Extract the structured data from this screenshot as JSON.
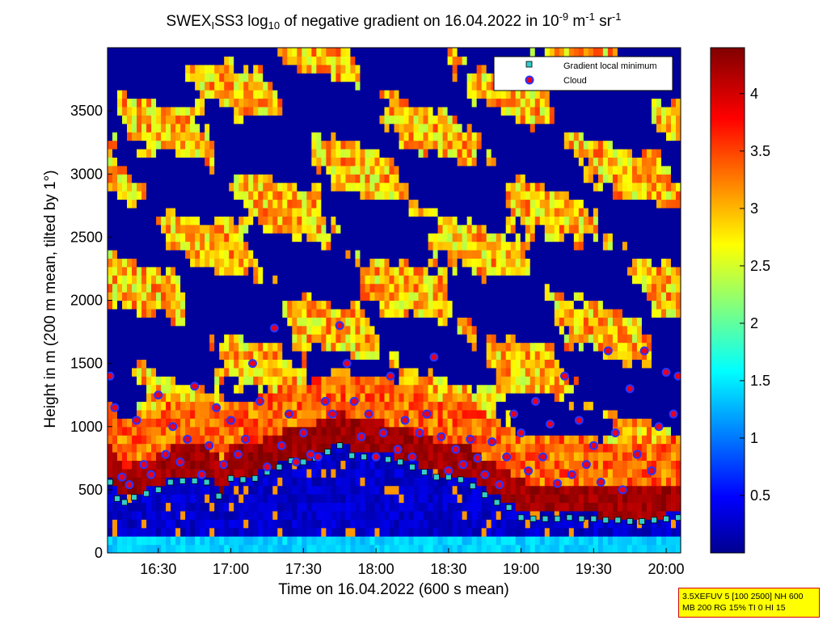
{
  "chart_data": {
    "type": "heatmap",
    "title": {
      "prefix": "SWEX",
      "prefix_sub": "I",
      "after_sub": "SS3 log",
      "log_sub": "10",
      "middle": " of negative gradient on 16.04.2022 in 10",
      "exp1": "-9",
      "unit1": " m",
      "exp2": "-1",
      "unit2": " sr",
      "exp3": "-1"
    },
    "xlabel": "Time on 16.04.2022 (600 s mean)",
    "ylabel": "Height in m (200 m mean, tilted by 1°)",
    "x_range": [
      "16:09",
      "20:06"
    ],
    "x_ticks": [
      "16:30",
      "17:00",
      "17:30",
      "18:00",
      "18:30",
      "19:00",
      "19:30",
      "20:00"
    ],
    "ylim": [
      0,
      4000
    ],
    "y_ticks": [
      0,
      500,
      1000,
      1500,
      2000,
      2500,
      3000,
      3500
    ],
    "colorbar": {
      "range": [
        0,
        4.4
      ],
      "ticks": [
        "0.5",
        "1",
        "1.5",
        "2",
        "2.5",
        "3",
        "3.5",
        "4"
      ],
      "colormap": "jet"
    },
    "legend": {
      "placement": "top-right",
      "entries": [
        {
          "label": "Gradient local minimum",
          "marker": "square",
          "color": "#33cccc"
        },
        {
          "label": "Cloud",
          "marker": "circle",
          "color": "#e8001c",
          "edge": "#2a33ff"
        }
      ]
    },
    "series": [
      {
        "name": "Gradient local minimum",
        "marker": "square",
        "x": [
          "16:10",
          "16:13",
          "16:16",
          "16:20",
          "16:25",
          "16:30",
          "16:35",
          "16:40",
          "16:45",
          "16:50",
          "16:55",
          "17:00",
          "17:05",
          "17:10",
          "17:15",
          "17:20",
          "17:25",
          "17:30",
          "17:35",
          "17:40",
          "17:45",
          "17:50",
          "17:55",
          "18:00",
          "18:05",
          "18:10",
          "18:15",
          "18:20",
          "18:25",
          "18:30",
          "18:35",
          "18:40",
          "18:45",
          "18:50",
          "18:55",
          "19:00",
          "19:05",
          "19:10",
          "19:15",
          "19:20",
          "19:25",
          "19:30",
          "19:35",
          "19:40",
          "19:45",
          "19:50",
          "19:55",
          "20:00",
          "20:05"
        ],
        "y": [
          560,
          430,
          400,
          440,
          470,
          500,
          560,
          570,
          570,
          560,
          450,
          590,
          580,
          590,
          640,
          680,
          730,
          720,
          750,
          800,
          850,
          770,
          760,
          760,
          740,
          720,
          680,
          640,
          600,
          600,
          580,
          530,
          460,
          400,
          360,
          280,
          270,
          270,
          270,
          280,
          270,
          270,
          260,
          260,
          250,
          250,
          260,
          270,
          280
        ]
      },
      {
        "name": "Cloud",
        "marker": "circle",
        "x": [
          "16:10",
          "16:12",
          "16:15",
          "16:18",
          "16:21",
          "16:24",
          "16:27",
          "16:30",
          "16:33",
          "16:36",
          "16:39",
          "16:42",
          "16:45",
          "16:48",
          "16:51",
          "16:54",
          "16:57",
          "17:00",
          "17:03",
          "17:06",
          "17:09",
          "17:12",
          "17:15",
          "17:18",
          "17:21",
          "17:24",
          "17:27",
          "17:30",
          "17:33",
          "17:36",
          "17:39",
          "17:42",
          "17:45",
          "17:48",
          "17:51",
          "17:54",
          "17:57",
          "18:00",
          "18:03",
          "18:06",
          "18:09",
          "18:12",
          "18:15",
          "18:18",
          "18:21",
          "18:24",
          "18:27",
          "18:30",
          "18:33",
          "18:36",
          "18:39",
          "18:42",
          "18:45",
          "18:48",
          "18:51",
          "18:54",
          "18:57",
          "19:00",
          "19:03",
          "19:06",
          "19:09",
          "19:12",
          "19:15",
          "19:18",
          "19:21",
          "19:24",
          "19:27",
          "19:30",
          "19:33",
          "19:36",
          "19:39",
          "19:42",
          "19:45",
          "19:48",
          "19:51",
          "19:54",
          "19:57",
          "20:00",
          "20:03",
          "20:05"
        ],
        "y": [
          1400,
          1150,
          600,
          540,
          1050,
          700,
          620,
          1250,
          780,
          1000,
          720,
          900,
          1320,
          620,
          850,
          1150,
          700,
          1050,
          780,
          900,
          1500,
          1200,
          680,
          1780,
          850,
          1100,
          720,
          950,
          780,
          760,
          1200,
          1100,
          1800,
          1500,
          1200,
          920,
          1100,
          760,
          950,
          1400,
          820,
          1050,
          760,
          950,
          1100,
          1550,
          920,
          650,
          820,
          700,
          900,
          750,
          620,
          880,
          540,
          760,
          1100,
          950,
          650,
          1200,
          760,
          1020,
          550,
          1400,
          620,
          1050,
          700,
          850,
          560,
          1600,
          950,
          500,
          1300,
          780,
          1600,
          650,
          1000,
          1430,
          1100,
          1400
        ]
      }
    ]
  },
  "info_box": {
    "line1": "3.5XEFUV 5 [100 2500] NH 600",
    "line2": "MB 200 RG 15% TI 0 HI 15"
  }
}
